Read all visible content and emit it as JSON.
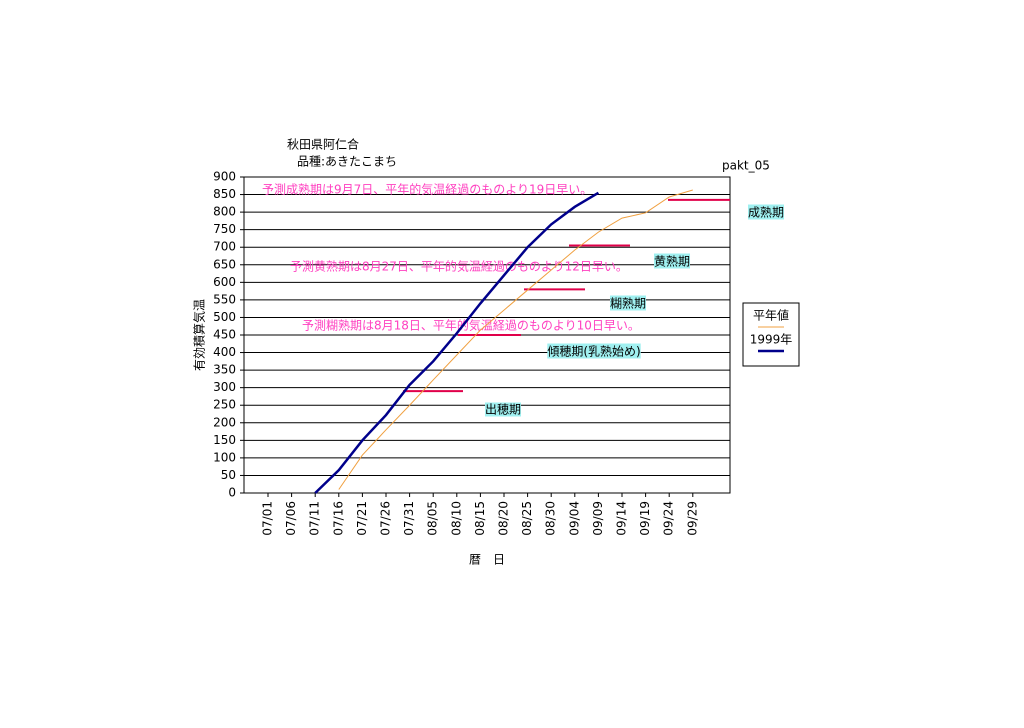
{
  "chart_data": {
    "type": "line",
    "title": "秋田県阿仁合",
    "subtitle": "品種:あきたこまち",
    "code": "pakt_05",
    "y_label": "有効積算気温",
    "x_label": "暦　日",
    "categories": [
      "07/01",
      "07/06",
      "07/11",
      "07/16",
      "07/21",
      "07/26",
      "07/31",
      "08/05",
      "08/10",
      "08/15",
      "08/20",
      "08/25",
      "08/30",
      "09/04",
      "09/09",
      "09/14",
      "09/19",
      "09/24",
      "09/29"
    ],
    "series": [
      {
        "name": "平年値",
        "color": "#f0a040",
        "values": [
          null,
          null,
          null,
          10,
          108,
          180,
          250,
          322,
          393,
          464,
          521,
          578,
          635,
          692,
          743,
          783,
          798,
          843,
          863
        ]
      },
      {
        "name": "1999年",
        "color": "#00008b",
        "values": [
          null,
          null,
          0,
          65,
          150,
          222,
          308,
          375,
          455,
          540,
          620,
          700,
          765,
          815,
          855,
          null,
          null,
          null,
          null
        ]
      }
    ],
    "ylim": [
      0,
      900
    ],
    "yticks": [
      0,
      50,
      100,
      150,
      200,
      250,
      300,
      350,
      400,
      450,
      500,
      550,
      600,
      650,
      700,
      750,
      800,
      850,
      900
    ],
    "grid": true,
    "stage_lines": [
      {
        "value": 290,
        "label": "出穂期"
      },
      {
        "value": 450,
        "label": "傾穂期(乳熟始め)"
      },
      {
        "value": 580,
        "label": "糊熟期"
      },
      {
        "value": 705,
        "label": "黄熟期"
      },
      {
        "value": 835,
        "label": "成熟期"
      }
    ],
    "stage_color": "#e0004a",
    "annotations": [
      "予測成熟期は9月7日、平年的気温経過のものより19日早い。",
      "予測黄熟期は8月27日、平年的気温経過のものより12日早い。",
      "予測糊熟期は8月18日、平年的気温経過のものより10日早い。"
    ]
  }
}
